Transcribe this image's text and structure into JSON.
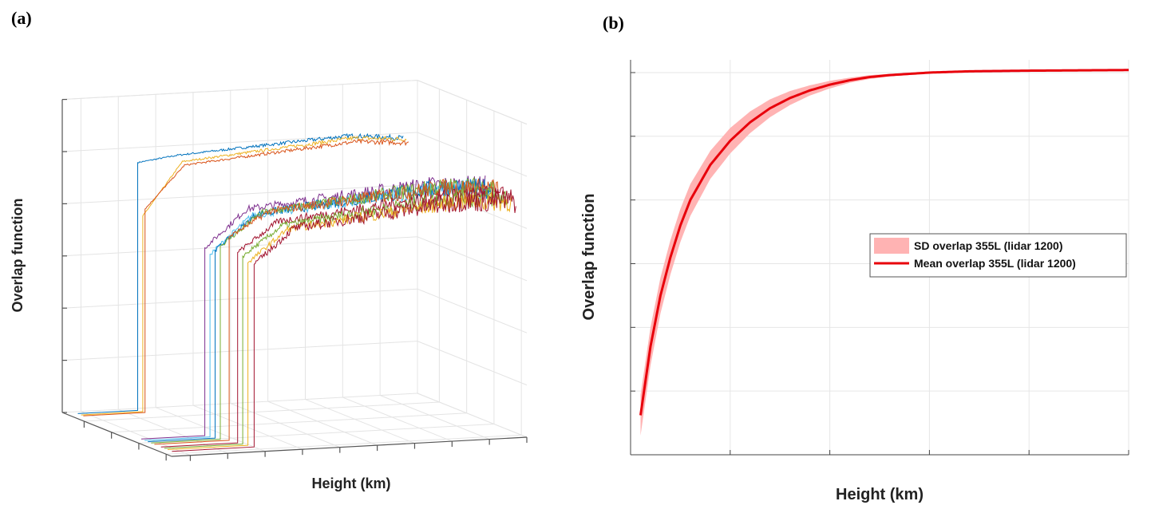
{
  "panels": {
    "a_label": "(a)",
    "b_label": "(b)"
  },
  "chart_data": [
    {
      "type": "line",
      "subtype": "3d-waterfall",
      "panel": "(a)",
      "xlabel": "Height (km)",
      "ylabel": "",
      "zlabel": "Overlap function",
      "xlim": [
        1,
        20
      ],
      "zlim": [
        0,
        1.2
      ],
      "x_ticks": [
        "2",
        "4",
        "6",
        "8",
        "10",
        "12",
        "14",
        "16",
        "18",
        "20"
      ],
      "z_ticks": [
        "0",
        "0.2",
        "0.4",
        "0.6",
        "0.8",
        "1",
        "1.2"
      ],
      "y_ticks": [
        "01012018",
        "01012019",
        "01012020",
        "01012021"
      ],
      "grid": true,
      "series": [
        {
          "date_pos": 0.04,
          "start_km": 4.8,
          "jump": 0.95,
          "mid": 0.97,
          "end": 1.02,
          "end_km": 19,
          "noise": 0.01,
          "color": "#0072BD"
        },
        {
          "date_pos": 0.07,
          "start_km": 4.9,
          "jump": 0.75,
          "mid": 0.95,
          "end": 1.02,
          "end_km": 19,
          "noise": 0.01,
          "color": "#EDB120"
        },
        {
          "date_pos": 0.09,
          "start_km": 4.9,
          "jump": 0.78,
          "mid": 0.94,
          "end": 1.01,
          "end_km": 19,
          "noise": 0.01,
          "color": "#D95319"
        },
        {
          "date_pos": 0.62,
          "start_km": 5.0,
          "jump": 0.72,
          "mid": 0.86,
          "end": 0.93,
          "end_km": 20,
          "noise": 0.04,
          "color": "#7E2F8E"
        },
        {
          "date_pos": 0.65,
          "start_km": 5.1,
          "jump": 0.7,
          "mid": 0.84,
          "end": 0.92,
          "end_km": 20,
          "noise": 0.04,
          "color": "#4DBEEE"
        },
        {
          "date_pos": 0.68,
          "start_km": 5.2,
          "jump": 0.72,
          "mid": 0.85,
          "end": 0.93,
          "end_km": 20,
          "noise": 0.04,
          "color": "#0072BD"
        },
        {
          "date_pos": 0.71,
          "start_km": 5.3,
          "jump": 0.74,
          "mid": 0.86,
          "end": 0.94,
          "end_km": 20,
          "noise": 0.04,
          "color": "#77AC30"
        },
        {
          "date_pos": 0.74,
          "start_km": 5.6,
          "jump": 0.78,
          "mid": 0.87,
          "end": 0.94,
          "end_km": 20,
          "noise": 0.04,
          "color": "#D95319"
        },
        {
          "date_pos": 0.8,
          "start_km": 5.7,
          "jump": 0.73,
          "mid": 0.84,
          "end": 0.92,
          "end_km": 20,
          "noise": 0.04,
          "color": "#A2142F"
        },
        {
          "date_pos": 0.83,
          "start_km": 5.8,
          "jump": 0.72,
          "mid": 0.83,
          "end": 0.92,
          "end_km": 20,
          "noise": 0.04,
          "color": "#77AC30"
        },
        {
          "date_pos": 0.86,
          "start_km": 5.9,
          "jump": 0.7,
          "mid": 0.82,
          "end": 0.91,
          "end_km": 20,
          "noise": 0.04,
          "color": "#EDB120"
        },
        {
          "date_pos": 0.9,
          "start_km": 6.0,
          "jump": 0.7,
          "mid": 0.83,
          "end": 0.92,
          "end_km": 20,
          "noise": 0.05,
          "color": "#A2142F"
        }
      ]
    },
    {
      "type": "area",
      "panel": "(b)",
      "xlabel": "Height (km)",
      "ylabel": "Overlap function",
      "xlim": [
        5,
        30
      ],
      "ylim": [
        0.4,
        1.02
      ],
      "x_ticks": [
        "5",
        "10",
        "15",
        "20",
        "25",
        "30"
      ],
      "y_ticks": [
        "0.4",
        "0.5",
        "0.6",
        "0.7",
        "0.8",
        "0.9",
        "1"
      ],
      "grid": true,
      "legend_position": "center-right",
      "x": [
        5.5,
        6,
        6.5,
        7,
        7.5,
        8,
        9,
        10,
        11,
        12,
        13,
        14,
        15,
        16,
        17,
        18,
        20,
        22,
        25,
        30
      ],
      "mean": [
        0.462,
        0.57,
        0.65,
        0.71,
        0.76,
        0.8,
        0.855,
        0.893,
        0.922,
        0.944,
        0.96,
        0.972,
        0.981,
        0.988,
        0.993,
        0.996,
        1.0,
        1.002,
        1.003,
        1.004
      ],
      "sd": [
        0.032,
        0.03,
        0.028,
        0.027,
        0.026,
        0.025,
        0.022,
        0.02,
        0.017,
        0.014,
        0.011,
        0.008,
        0.006,
        0.004,
        0.003,
        0.002,
        0.001,
        0.001,
        0.001,
        0.001
      ],
      "series": [
        {
          "name": "SD overlap 355L (lidar 1200)",
          "color": "#ffb3b3"
        },
        {
          "name": "Mean overlap 355L (lidar 1200)",
          "color": "#e8000b"
        }
      ]
    }
  ]
}
